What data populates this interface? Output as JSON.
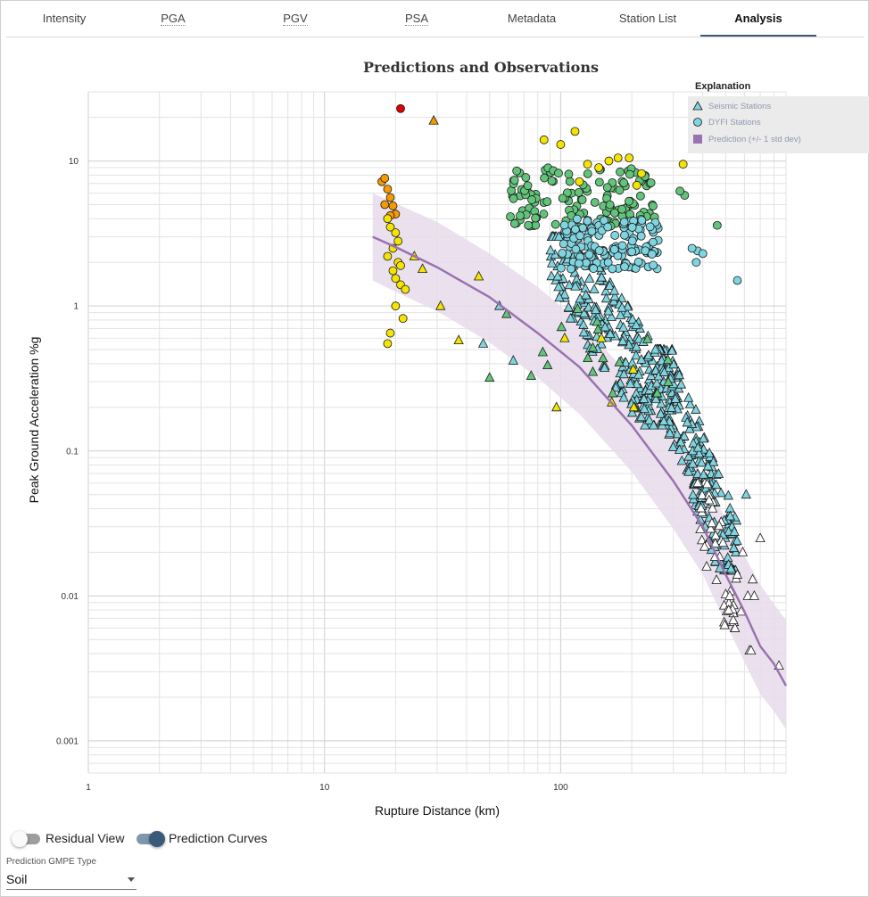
{
  "tabs": [
    {
      "label": "Intensity",
      "dotted": false,
      "active": false
    },
    {
      "label": "PGA",
      "dotted": true,
      "active": false
    },
    {
      "label": "PGV",
      "dotted": true,
      "active": false
    },
    {
      "label": "PSA",
      "dotted": true,
      "active": false
    },
    {
      "label": "Metadata",
      "dotted": false,
      "active": false
    },
    {
      "label": "Station List",
      "dotted": false,
      "active": false
    },
    {
      "label": "Analysis",
      "dotted": false,
      "active": true
    }
  ],
  "chart_data": {
    "type": "scatter",
    "title": "Predictions and Observations",
    "xlabel": "Rupture Distance (km)",
    "ylabel": "Peak Ground Acceleration %g",
    "x_scale": "log",
    "y_scale": "log",
    "xlim": [
      1,
      900
    ],
    "ylim": [
      0.0006,
      30
    ],
    "grid": true,
    "x_ticks": [
      {
        "value": 1,
        "label": "1"
      },
      {
        "value": 10,
        "label": "10"
      },
      {
        "value": 100,
        "label": "100"
      }
    ],
    "y_ticks": [
      {
        "value": 10,
        "label": "10"
      },
      {
        "value": 1,
        "label": "1"
      },
      {
        "value": 0.1,
        "label": "0.1"
      },
      {
        "value": 0.01,
        "label": "0.01"
      },
      {
        "value": 0.001,
        "label": "0.001"
      }
    ],
    "legend": {
      "title": "Explanation",
      "placement": "top-right",
      "entries": [
        {
          "label": "Seismic Stations",
          "marker": "triangle"
        },
        {
          "label": "DYFI Stations",
          "marker": "circle"
        },
        {
          "label": "Prediction (+/- 1 std dev)",
          "marker": "band"
        }
      ]
    },
    "prediction": {
      "color": "#9b72b0",
      "band_color": "#e7dceb",
      "x": [
        16,
        20,
        30,
        50,
        80,
        120,
        200,
        300,
        400,
        500,
        600,
        700,
        800,
        900
      ],
      "median": [
        3.0,
        2.55,
        1.85,
        1.15,
        0.65,
        0.38,
        0.15,
        0.062,
        0.03,
        0.014,
        0.0078,
        0.0045,
        0.0034,
        0.0024
      ],
      "upper": [
        6.0,
        5.1,
        3.8,
        2.3,
        1.35,
        0.78,
        0.32,
        0.14,
        0.068,
        0.034,
        0.019,
        0.012,
        0.0088,
        0.0068
      ],
      "lower": [
        1.5,
        1.25,
        0.92,
        0.56,
        0.32,
        0.18,
        0.072,
        0.029,
        0.014,
        0.0065,
        0.0035,
        0.0021,
        0.0016,
        0.0012
      ]
    },
    "intensity_colors": {
      "white": "#ffffff",
      "cyan": "#7fd4e0",
      "green": "#62c47a",
      "yellow": "#f5e400",
      "orange": "#f59a00",
      "red": "#e00000"
    },
    "dyfi_stations": [
      {
        "x": 21,
        "y": 23,
        "color": "red"
      },
      {
        "x": 17.5,
        "y": 7.2,
        "color": "orange"
      },
      {
        "x": 18,
        "y": 7.6,
        "color": "orange"
      },
      {
        "x": 18.5,
        "y": 6.4,
        "color": "orange"
      },
      {
        "x": 19,
        "y": 5.6,
        "color": "orange"
      },
      {
        "x": 19.5,
        "y": 4.9,
        "color": "orange"
      },
      {
        "x": 20,
        "y": 4.3,
        "color": "orange"
      },
      {
        "x": 18,
        "y": 5.0,
        "color": "orange"
      },
      {
        "x": 19,
        "y": 4.2,
        "color": "orange"
      },
      {
        "x": 18.5,
        "y": 4.0,
        "color": "yellow"
      },
      {
        "x": 19,
        "y": 3.5,
        "color": "yellow"
      },
      {
        "x": 20,
        "y": 3.2,
        "color": "yellow"
      },
      {
        "x": 20.5,
        "y": 2.8,
        "color": "yellow"
      },
      {
        "x": 19.5,
        "y": 2.5,
        "color": "yellow"
      },
      {
        "x": 18.5,
        "y": 2.2,
        "color": "yellow"
      },
      {
        "x": 20.5,
        "y": 2.0,
        "color": "yellow"
      },
      {
        "x": 21,
        "y": 1.9,
        "color": "yellow"
      },
      {
        "x": 19.5,
        "y": 1.75,
        "color": "yellow"
      },
      {
        "x": 20,
        "y": 1.55,
        "color": "yellow"
      },
      {
        "x": 21,
        "y": 1.4,
        "color": "yellow"
      },
      {
        "x": 22,
        "y": 1.3,
        "color": "yellow"
      },
      {
        "x": 20,
        "y": 1.0,
        "color": "yellow"
      },
      {
        "x": 21.5,
        "y": 0.82,
        "color": "yellow"
      },
      {
        "x": 19,
        "y": 0.65,
        "color": "yellow"
      },
      {
        "x": 18.5,
        "y": 0.55,
        "color": "yellow"
      },
      {
        "x": 85,
        "y": 14,
        "color": "yellow"
      },
      {
        "x": 100,
        "y": 13,
        "color": "yellow"
      },
      {
        "x": 115,
        "y": 16,
        "color": "yellow"
      },
      {
        "x": 130,
        "y": 9.5,
        "color": "yellow"
      },
      {
        "x": 145,
        "y": 9.0,
        "color": "yellow"
      },
      {
        "x": 160,
        "y": 10,
        "color": "yellow"
      },
      {
        "x": 175,
        "y": 10.5,
        "color": "yellow"
      },
      {
        "x": 195,
        "y": 10.5,
        "color": "yellow"
      },
      {
        "x": 220,
        "y": 8.2,
        "color": "yellow"
      },
      {
        "x": 330,
        "y": 9.5,
        "color": "yellow"
      },
      {
        "x": 120,
        "y": 7.2,
        "color": "yellow"
      },
      {
        "x": 210,
        "y": 6.8,
        "color": "yellow"
      },
      {
        "x": 335,
        "y": 5.8,
        "color": "green"
      },
      {
        "x": 460,
        "y": 3.6,
        "color": "green"
      },
      {
        "x": 320,
        "y": 6.2,
        "color": "green"
      },
      {
        "x": 380,
        "y": 2.4,
        "color": "cyan"
      },
      {
        "x": 360,
        "y": 2.5,
        "color": "cyan"
      },
      {
        "x": 400,
        "y": 2.3,
        "color": "cyan"
      },
      {
        "x": 375,
        "y": 2.0,
        "color": "cyan"
      },
      {
        "x": 560,
        "y": 1.5,
        "color": "cyan"
      }
    ],
    "dyfi_clusters": [
      {
        "color": "green",
        "count": 140,
        "x_range": [
          60,
          250
        ],
        "y_range": [
          3.5,
          9.0
        ]
      },
      {
        "color": "cyan",
        "count": 140,
        "x_range": [
          100,
          260
        ],
        "y_range": [
          1.8,
          4.0
        ]
      }
    ],
    "seismic_stations": [
      {
        "x": 24,
        "y": 2.2,
        "color": "yellow"
      },
      {
        "x": 26,
        "y": 1.8,
        "color": "yellow"
      },
      {
        "x": 29,
        "y": 19,
        "color": "orange"
      },
      {
        "x": 31,
        "y": 1.0,
        "color": "yellow"
      },
      {
        "x": 37,
        "y": 0.58,
        "color": "yellow"
      },
      {
        "x": 45,
        "y": 1.6,
        "color": "yellow"
      },
      {
        "x": 47,
        "y": 0.55,
        "color": "cyan"
      },
      {
        "x": 50,
        "y": 0.32,
        "color": "green"
      },
      {
        "x": 55,
        "y": 1.0,
        "color": "cyan"
      },
      {
        "x": 59,
        "y": 0.88,
        "color": "green"
      },
      {
        "x": 63,
        "y": 0.42,
        "color": "cyan"
      },
      {
        "x": 75,
        "y": 0.33,
        "color": "green"
      },
      {
        "x": 84,
        "y": 0.48,
        "color": "green"
      },
      {
        "x": 88,
        "y": 0.39,
        "color": "green"
      },
      {
        "x": 96,
        "y": 0.2,
        "color": "yellow"
      },
      {
        "x": 610,
        "y": 0.05,
        "color": "cyan"
      },
      {
        "x": 700,
        "y": 0.025,
        "color": "white"
      },
      {
        "x": 650,
        "y": 0.013,
        "color": "white"
      },
      {
        "x": 620,
        "y": 0.01,
        "color": "white"
      },
      {
        "x": 660,
        "y": 0.01,
        "color": "white"
      },
      {
        "x": 580,
        "y": 0.0078,
        "color": "white"
      },
      {
        "x": 840,
        "y": 0.0033,
        "color": "white"
      },
      {
        "x": 630,
        "y": 0.0042,
        "color": "white"
      },
      {
        "x": 640,
        "y": 0.0042,
        "color": "white"
      },
      {
        "x": 520,
        "y": 0.01,
        "color": "white"
      },
      {
        "x": 560,
        "y": 0.014,
        "color": "white"
      },
      {
        "x": 590,
        "y": 0.02,
        "color": "white"
      }
    ],
    "seismic_clusters": [
      {
        "color": "cyan",
        "count": 260,
        "x_range": [
          90,
          300
        ],
        "y_range": [
          0.15,
          3.0
        ]
      },
      {
        "color": "cyan",
        "count": 240,
        "x_range": [
          250,
          560
        ],
        "y_range": [
          0.015,
          0.5
        ]
      },
      {
        "color": "white",
        "count": 45,
        "x_range": [
          380,
          560
        ],
        "y_range": [
          0.006,
          0.06
        ]
      },
      {
        "color": "green",
        "count": 14,
        "x_range": [
          80,
          300
        ],
        "y_range": [
          0.25,
          1.0
        ]
      },
      {
        "color": "yellow",
        "count": 6,
        "x_range": [
          90,
          220
        ],
        "y_range": [
          0.2,
          0.6
        ]
      }
    ]
  },
  "toggles": {
    "residual_view": {
      "label": "Residual View",
      "on": false
    },
    "prediction_curves": {
      "label": "Prediction Curves",
      "on": true
    }
  },
  "gmpe": {
    "label": "Prediction GMPE Type",
    "value": "Soil"
  }
}
